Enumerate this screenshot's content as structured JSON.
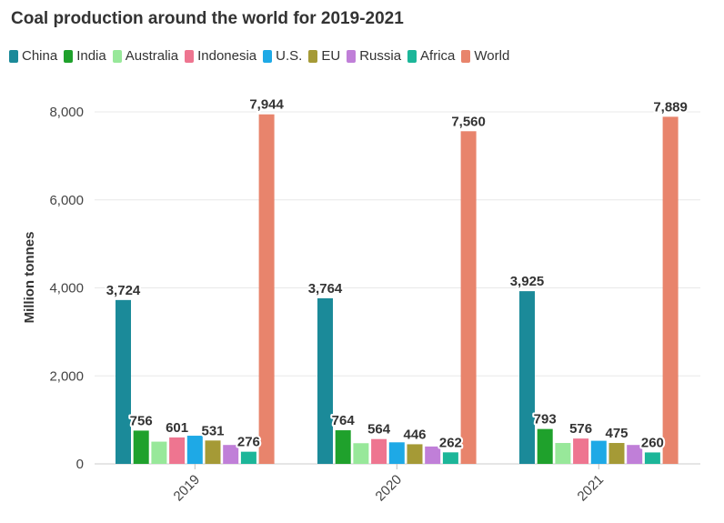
{
  "title": "Coal production around the world for 2019-2021",
  "colors": {
    "China": "#1b8a99",
    "India": "#1fa12c",
    "Australia": "#98e89a",
    "Indonesia": "#ee7590",
    "U.S.": "#1ea9e6",
    "EU": "#a59a36",
    "Russia": "#c07fd8",
    "Africa": "#1cb699",
    "World": "#e8846c"
  },
  "chart_data": {
    "type": "bar",
    "categories": [
      "2019",
      "2020",
      "2021"
    ],
    "ylabel": "Million tonnes",
    "xlabel": "",
    "ylim": [
      0,
      8000
    ],
    "yticks": [
      0,
      2000,
      4000,
      6000,
      8000
    ],
    "ytick_labels": [
      "0",
      "2,000",
      "4,000",
      "6,000",
      "8,000"
    ],
    "legend_position": "top-left",
    "grid": true,
    "series": [
      {
        "name": "China",
        "values": [
          3724,
          3764,
          3925
        ],
        "labels": [
          "3,724",
          "3,764",
          "3,925"
        ]
      },
      {
        "name": "India",
        "values": [
          756,
          764,
          793
        ],
        "labels": [
          "756",
          "764",
          "793"
        ]
      },
      {
        "name": "Australia",
        "values": [
          505,
          470,
          475
        ],
        "labels": [
          "",
          "",
          ""
        ]
      },
      {
        "name": "Indonesia",
        "values": [
          601,
          564,
          576
        ],
        "labels": [
          "601",
          "564",
          "576"
        ]
      },
      {
        "name": "U.S.",
        "values": [
          640,
          490,
          525
        ],
        "labels": [
          "",
          "",
          ""
        ]
      },
      {
        "name": "EU",
        "values": [
          531,
          446,
          475
        ],
        "labels": [
          "531",
          "446",
          "475"
        ]
      },
      {
        "name": "Russia",
        "values": [
          430,
          395,
          430
        ],
        "labels": [
          "",
          "",
          ""
        ]
      },
      {
        "name": "Africa",
        "values": [
          276,
          262,
          260
        ],
        "labels": [
          "276",
          "262",
          "260"
        ]
      },
      {
        "name": "World",
        "values": [
          7944,
          7560,
          7889
        ],
        "labels": [
          "7,944",
          "7,560",
          "7,889"
        ]
      }
    ]
  }
}
